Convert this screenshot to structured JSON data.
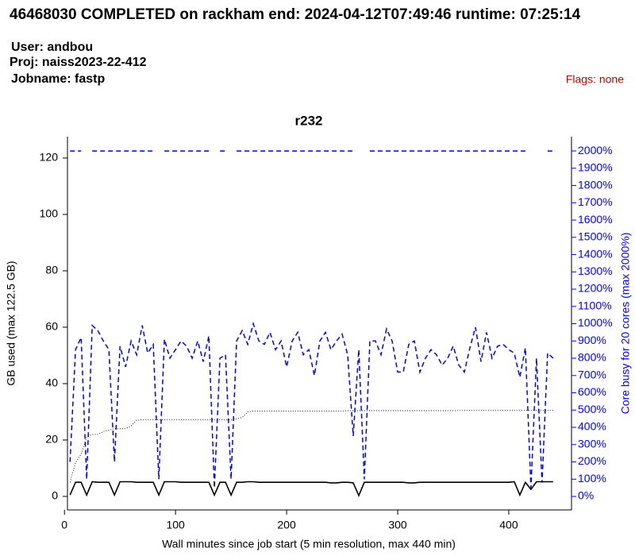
{
  "header": {
    "title": "46468030 COMPLETED on rackham  end: 2024-04-12T07:49:46  runtime: 07:25:14",
    "user": "User: andbou",
    "proj": "Proj: naiss2023-22-412",
    "jobname": "Jobname: fastp",
    "flags": "Flags: none"
  },
  "chart_data": {
    "type": "line",
    "title": "r232",
    "x_label": "Wall minutes since job start (5 min resolution, max 440 min)",
    "y_label": "GB used (max 122.5 GB)",
    "y2_label": "Core busy for 20 cores (max 2000%)",
    "x": [
      5,
      10,
      15,
      20,
      25,
      30,
      35,
      40,
      45,
      50,
      55,
      60,
      65,
      70,
      75,
      80,
      85,
      90,
      95,
      100,
      105,
      110,
      115,
      120,
      125,
      130,
      135,
      140,
      145,
      150,
      155,
      160,
      165,
      170,
      175,
      180,
      185,
      190,
      195,
      200,
      205,
      210,
      215,
      220,
      225,
      230,
      235,
      240,
      245,
      250,
      255,
      260,
      265,
      270,
      275,
      280,
      285,
      290,
      295,
      300,
      305,
      310,
      315,
      320,
      325,
      330,
      335,
      340,
      345,
      350,
      355,
      360,
      365,
      370,
      375,
      380,
      385,
      390,
      395,
      400,
      405,
      410,
      415,
      420,
      425,
      430,
      435,
      440
    ],
    "series": [
      {
        "color": "#0000ff",
        "linestyle": "dashed",
        "axis": "y2",
        "values": [
          200,
          850,
          920,
          100,
          990,
          960,
          900,
          850,
          200,
          870,
          750,
          900,
          820,
          990,
          830,
          880,
          100,
          910,
          800,
          850,
          900,
          870,
          800,
          900,
          780,
          930,
          50,
          800,
          820,
          100,
          900,
          960,
          880,
          1000,
          900,
          880,
          950,
          850,
          900,
          750,
          900,
          950,
          820,
          850,
          700,
          900,
          950,
          850,
          900,
          940,
          820,
          350,
          850,
          100,
          900,
          900,
          820,
          970,
          900,
          720,
          720,
          880,
          900,
          720,
          800,
          850,
          820,
          760,
          800,
          870,
          760,
          720,
          860,
          980,
          780,
          950,
          800,
          870,
          880,
          850,
          830,
          690,
          860,
          50,
          800,
          80,
          830,
          800
        ]
      },
      {
        "color": "#0000ff",
        "linestyle": "dashed",
        "axis": "y2",
        "values": [
          2000,
          2000,
          2000,
          null,
          2000,
          2000,
          2000,
          2000,
          2000,
          2000,
          2000,
          2000,
          2000,
          2000,
          2000,
          2000,
          null,
          2000,
          2000,
          2000,
          2000,
          2000,
          2000,
          2000,
          2000,
          2000,
          null,
          2000,
          2000,
          null,
          2000,
          2000,
          2000,
          2000,
          2000,
          2000,
          2000,
          2000,
          2000,
          2000,
          2000,
          2000,
          2000,
          2000,
          2000,
          2000,
          2000,
          2000,
          2000,
          2000,
          2000,
          2000,
          null,
          null,
          2000,
          2000,
          2000,
          2000,
          2000,
          2000,
          2000,
          2000,
          2000,
          2000,
          2000,
          2000,
          2000,
          2000,
          2000,
          2000,
          2000,
          2000,
          2000,
          2000,
          2000,
          2000,
          2000,
          2000,
          2000,
          2000,
          2000,
          2000,
          2000,
          null,
          2000,
          null,
          2000,
          2000
        ]
      },
      {
        "color": "#000000",
        "linestyle": "dotted",
        "values": [
          5,
          12,
          15,
          21,
          22,
          22,
          23,
          23.5,
          24,
          24,
          24,
          25,
          27,
          27.2,
          27.2,
          27.2,
          27.2,
          27.2,
          27.2,
          27.2,
          27.2,
          27.2,
          27.2,
          27.2,
          27.2,
          27.2,
          27.2,
          27.2,
          27.2,
          27.2,
          27.5,
          28,
          30,
          30.3,
          30.3,
          30.3,
          30.3,
          30.3,
          30.3,
          30.3,
          30.3,
          30.3,
          30.3,
          30.3,
          30.3,
          30.3,
          30.3,
          30.3,
          30.3,
          30.3,
          30.4,
          30.4,
          30.4,
          30.4,
          30.4,
          30.4,
          30.4,
          30.4,
          30.4,
          30.4,
          30.4,
          30.4,
          30.4,
          30.4,
          30.4,
          30.4,
          30.4,
          30.4,
          30.4,
          30.4,
          30.5,
          30.5,
          30.5,
          30.5,
          30.5,
          30.5,
          30.5,
          30.5,
          30.5,
          30.5,
          30.5,
          30.5,
          30.5,
          30.5,
          30.5,
          30.5,
          30.5,
          30.5
        ]
      },
      {
        "color": "#000000",
        "linestyle": "solid",
        "values": [
          0.5,
          5,
          5,
          0.5,
          5.2,
          5,
          5,
          5,
          0.5,
          5.2,
          5.2,
          5.2,
          5,
          5,
          5,
          5,
          0.5,
          5.2,
          5.2,
          5.2,
          5,
          5,
          5,
          5,
          5,
          5,
          0.5,
          5,
          5,
          0.5,
          5,
          5,
          5.2,
          5.2,
          5,
          5,
          5,
          5,
          5,
          5,
          5,
          5,
          5,
          5,
          5,
          5,
          5,
          4.8,
          4.8,
          5,
          5,
          4.8,
          0.3,
          5,
          5,
          5,
          5,
          5,
          5,
          5,
          5,
          4.8,
          4.8,
          5,
          5,
          5,
          5,
          5,
          5,
          5,
          5,
          5,
          5,
          5,
          5,
          5,
          5,
          5,
          5,
          5,
          5.2,
          0.5,
          5,
          2.5,
          5.2,
          5.2,
          5.2,
          5.2
        ]
      }
    ],
    "xlim": [
      -3,
      456.5
    ],
    "xticks": [
      0,
      100,
      200,
      300,
      400
    ],
    "ylim": [
      -4.8,
      127.6
    ],
    "yticks": [
      0,
      20,
      40,
      60,
      80,
      100,
      120
    ],
    "y2lim": [
      -78,
      2083
    ],
    "y2ticks": [
      {
        "value": 0,
        "label": "0%"
      },
      {
        "value": 100,
        "label": "100%"
      },
      {
        "value": 200,
        "label": "200%"
      },
      {
        "value": 300,
        "label": "300%"
      },
      {
        "value": 400,
        "label": "400%"
      },
      {
        "value": 500,
        "label": "500%"
      },
      {
        "value": 600,
        "label": "600%"
      },
      {
        "value": 700,
        "label": "700%"
      },
      {
        "value": 800,
        "label": "800%"
      },
      {
        "value": 900,
        "label": "900%"
      },
      {
        "value": 1000,
        "label": "1000%"
      },
      {
        "value": 1100,
        "label": "1100%"
      },
      {
        "value": 1200,
        "label": "1200%"
      },
      {
        "value": 1300,
        "label": "1300%"
      },
      {
        "value": 1400,
        "label": "1400%"
      },
      {
        "value": 1500,
        "label": "1500%"
      },
      {
        "value": 1600,
        "label": "1600%"
      },
      {
        "value": 1700,
        "label": "1700%"
      },
      {
        "value": 1800,
        "label": "1800%"
      },
      {
        "value": 1900,
        "label": "1900%"
      },
      {
        "value": 2000,
        "label": "2000%"
      }
    ],
    "y2_color": "#0000ff",
    "grid": false
  }
}
